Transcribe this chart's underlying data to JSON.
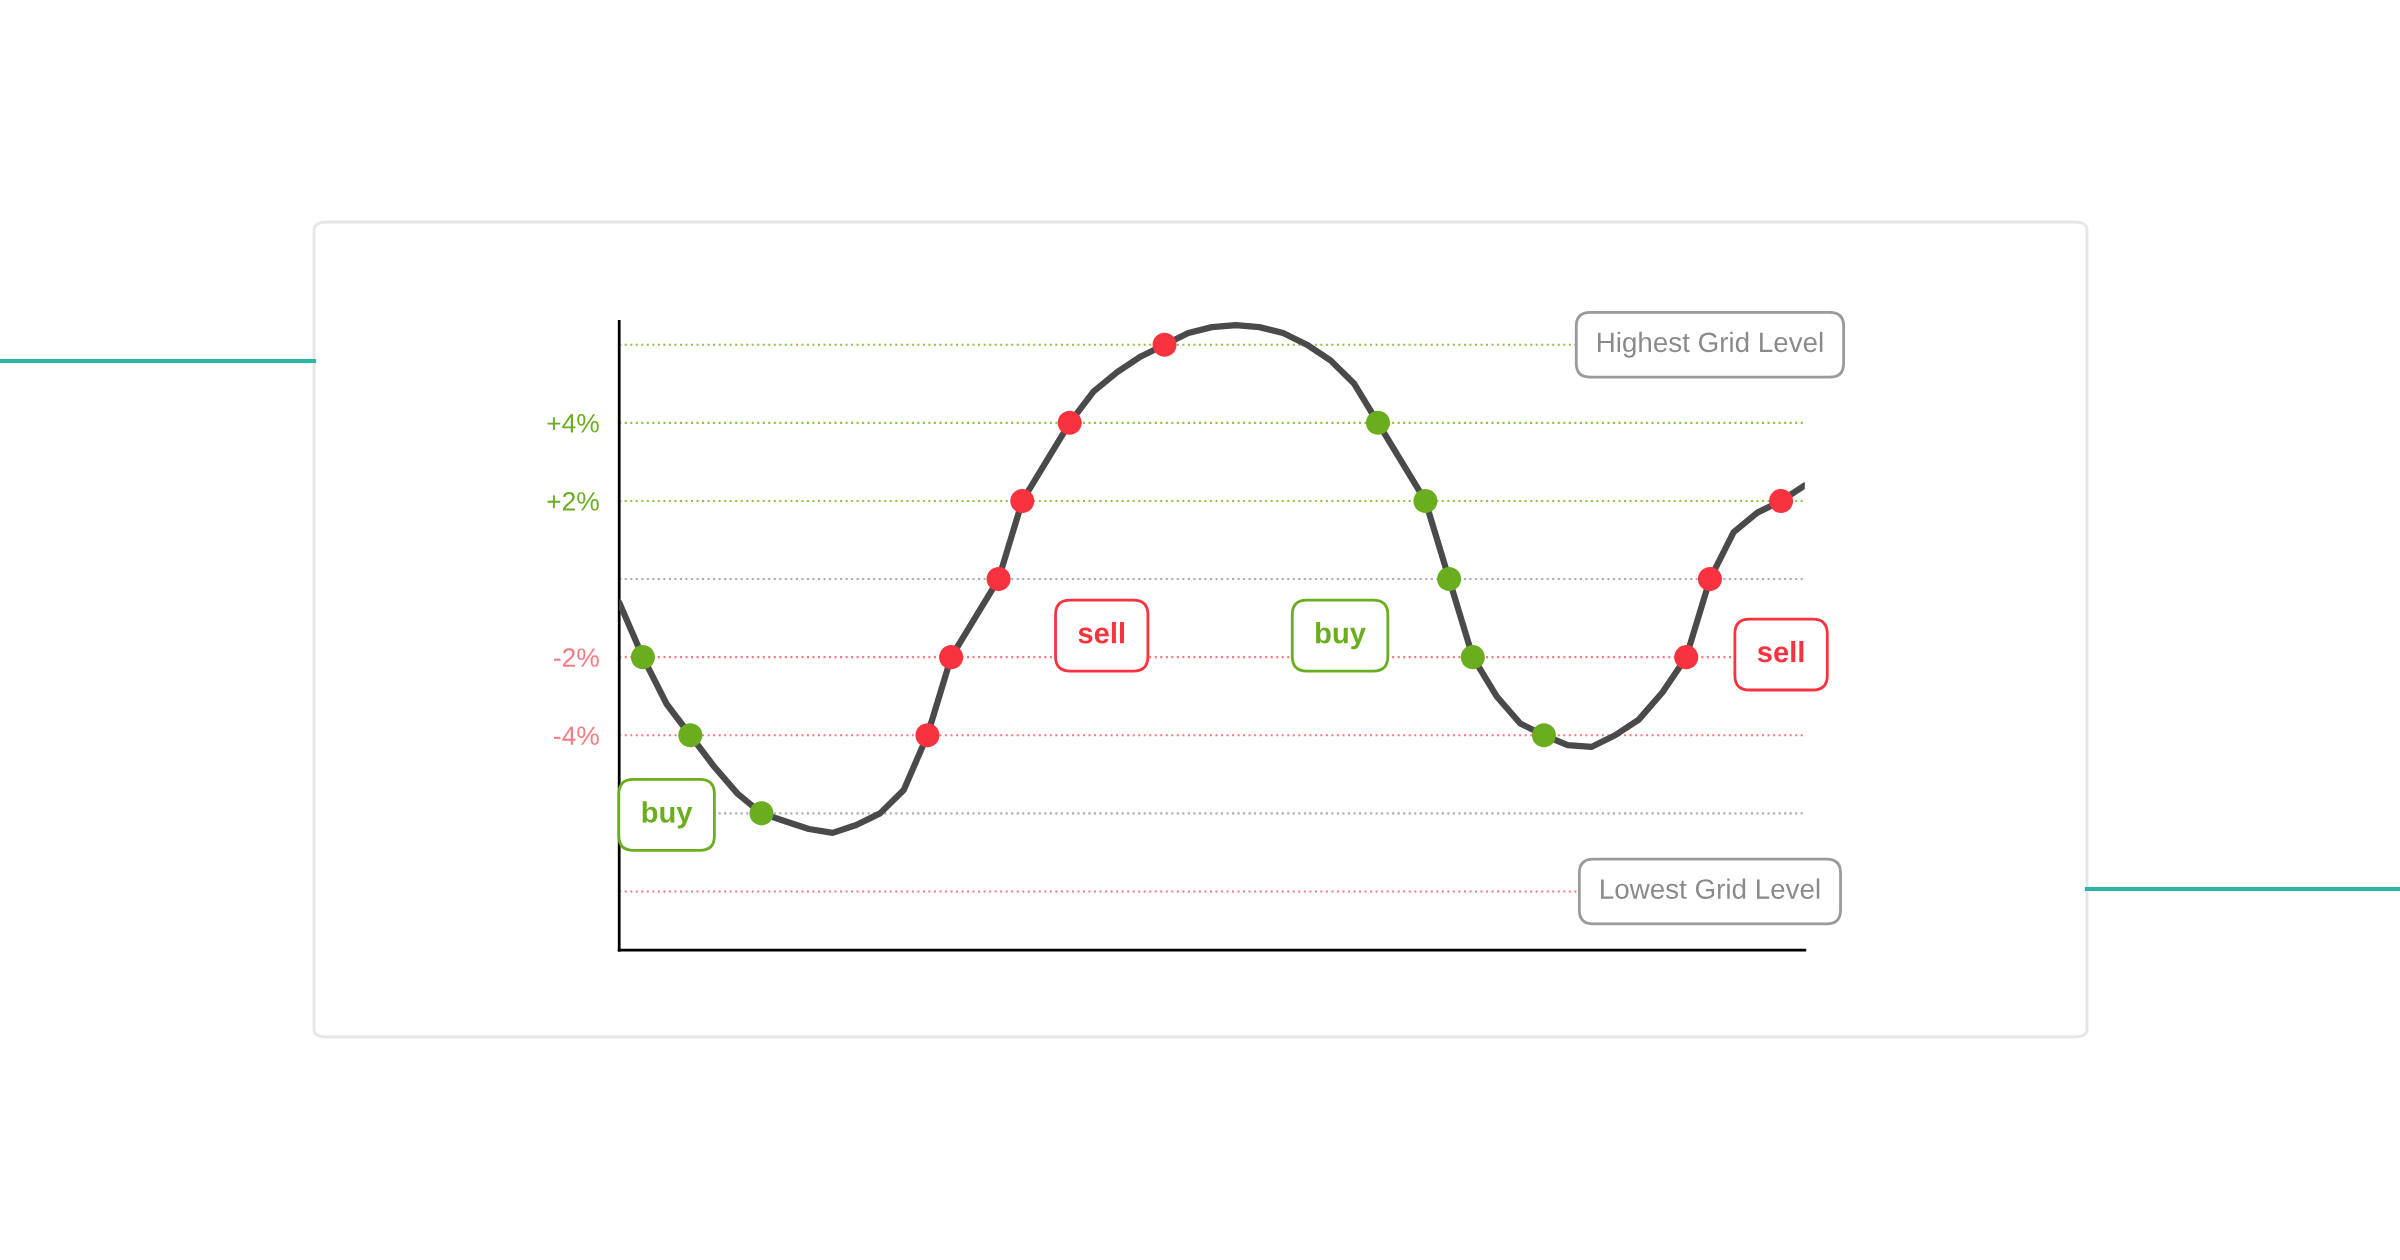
{
  "chart_data": {
    "type": "line",
    "categories": [
      null,
      null,
      null,
      null,
      null,
      null,
      null,
      null,
      null,
      null,
      null,
      null,
      null,
      null,
      null,
      null,
      null,
      null,
      null,
      null,
      null,
      null,
      null,
      null,
      null,
      null,
      null,
      null,
      null,
      null,
      null,
      null,
      null,
      null,
      null,
      null,
      null,
      null,
      null,
      null,
      null,
      null,
      null,
      null,
      null,
      null,
      null,
      null,
      null,
      null,
      null
    ],
    "series": [
      {
        "color": "#4a4a4a",
        "values": [
          -0.6,
          -2,
          -3.2,
          -4,
          -4.8,
          -5.5,
          -6,
          -6.2,
          -6.4,
          -6.5,
          -6.3,
          -6.0,
          -5.4,
          -4,
          -2,
          -1.0,
          0,
          2,
          3.0,
          4,
          4.8,
          5.3,
          5.7,
          6,
          6.3,
          6.45,
          6.5,
          6.45,
          6.3,
          6.0,
          5.6,
          5.0,
          4,
          3.0,
          2,
          0,
          -2,
          -3.0,
          -3.7,
          -4,
          -4.25,
          -4.3,
          -4.0,
          -3.6,
          -2.9,
          -2,
          0,
          1.2,
          1.7,
          2,
          2.4
        ],
        "colors": [
          null,
          "#6aad1e",
          null,
          "#6aad1e",
          null,
          null,
          "#6aad1e",
          null,
          null,
          null,
          null,
          null,
          null,
          "#f8333f",
          "#f8333f",
          null,
          "#f8333f",
          "#f8333f",
          null,
          "#f8333f",
          null,
          null,
          null,
          "#f8333f",
          null,
          null,
          null,
          null,
          null,
          null,
          null,
          null,
          "#6aad1e",
          null,
          "#6aad1e",
          "#6aad1e",
          "#6aad1e",
          null,
          null,
          "#6aad1e",
          null,
          null,
          null,
          null,
          null,
          "#f8333f",
          "#f8333f",
          null,
          null,
          "#f8333f",
          null
        ]
      }
    ],
    "ylim": [
      -9.5,
      6.6
    ],
    "yticks": [
      {
        "value": 6,
        "label": null
      },
      {
        "value": 4,
        "label": "+4%"
      },
      {
        "value": 2,
        "label": "+2%"
      },
      {
        "value": 0,
        "label": null
      },
      {
        "value": -2,
        "label": "-2%"
      },
      {
        "value": -4,
        "label": "-4%"
      },
      {
        "value": -6,
        "label": null
      },
      {
        "value": -8,
        "label": null
      }
    ],
    "tick_labels": "y",
    "ref_lines": [
      {
        "axis": "y",
        "value": 6,
        "label": "Highest Grid Level",
        "color": "#8cc63f",
        "line_style": "dotted"
      },
      {
        "axis": "y",
        "value": 4,
        "color": "#8cc63f",
        "line_style": "dotted"
      },
      {
        "axis": "y",
        "value": 2,
        "color": "#8cc63f",
        "line_style": "dotted"
      },
      {
        "axis": "y",
        "value": 0,
        "color": "#aaaaaa",
        "line_style": "dotted"
      },
      {
        "axis": "y",
        "value": -2,
        "color": "#f87a80",
        "line_style": "dotted"
      },
      {
        "axis": "y",
        "value": -4,
        "color": "#f87a80",
        "line_style": "dotted"
      },
      {
        "axis": "y",
        "value": -6,
        "color": "#aaaaaa",
        "line_style": "dotted"
      },
      {
        "axis": "y",
        "value": -8,
        "label": "Lowest Grid Level",
        "color": "#f87a80",
        "line_style": "dotted"
      }
    ],
    "annotations": [
      "buy",
      "sell",
      "buy",
      "sell"
    ]
  }
}
